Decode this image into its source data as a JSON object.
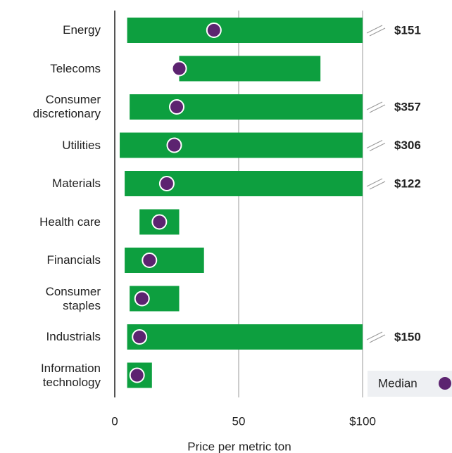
{
  "chart_data": {
    "type": "range_bar",
    "categories": [
      "Energy",
      "Telecoms",
      "Consumer discretionary",
      "Utilities",
      "Materials",
      "Health care",
      "Financials",
      "Consumer staples",
      "Industrials",
      "Information technology"
    ],
    "min": [
      5,
      26,
      6,
      2,
      4,
      10,
      4,
      6,
      5,
      5
    ],
    "max": [
      151,
      83,
      357,
      306,
      122,
      26,
      36,
      26,
      150,
      15
    ],
    "max_value_labels": [
      "$151",
      null,
      "$357",
      "$306",
      "$122",
      null,
      null,
      null,
      "$150",
      null
    ],
    "bar_color": "#0d9f3f",
    "series": [
      {
        "name": "Median",
        "color": "#5c2370",
        "values": [
          40,
          26,
          25,
          24,
          21,
          18,
          14,
          11,
          10,
          9
        ]
      }
    ],
    "xlim": [
      0,
      100
    ],
    "xticks": [
      0,
      50,
      {
        "value": 100,
        "label": "$100"
      }
    ],
    "xlabel": "Price per metric ton",
    "grid": true
  }
}
